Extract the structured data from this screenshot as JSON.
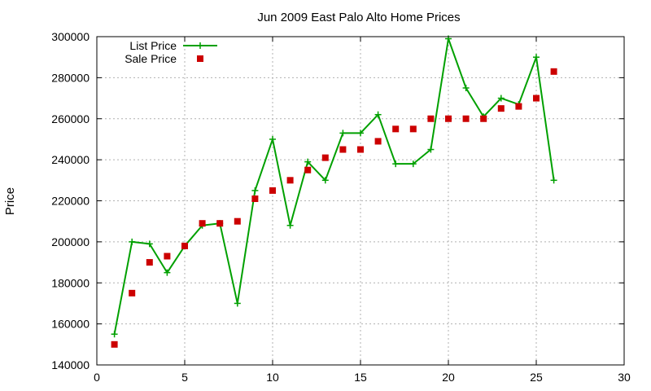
{
  "chart_data": {
    "type": "line",
    "title": "Jun 2009 East Palo Alto Home Prices",
    "xlabel": "",
    "ylabel": "Price",
    "xlim": [
      0,
      30
    ],
    "ylim": [
      140000,
      300000
    ],
    "x_ticks": [
      0,
      5,
      10,
      15,
      20,
      25,
      30
    ],
    "y_ticks": [
      140000,
      160000,
      180000,
      200000,
      220000,
      240000,
      260000,
      280000,
      300000
    ],
    "grid": true,
    "legend_position": "top-left",
    "series": [
      {
        "name": "List Price",
        "style": "line-with-plus-markers",
        "color": "#00a000",
        "x": [
          1,
          2,
          3,
          4,
          5,
          6,
          7,
          8,
          9,
          10,
          11,
          12,
          13,
          14,
          15,
          16,
          17,
          18,
          19,
          20,
          21,
          22,
          23,
          24,
          25,
          26
        ],
        "y": [
          155000,
          200000,
          199000,
          185000,
          198000,
          208000,
          209000,
          170000,
          225000,
          250000,
          208000,
          239000,
          230000,
          253000,
          253000,
          262000,
          238000,
          238000,
          245000,
          299000,
          275000,
          261000,
          270000,
          267000,
          290000,
          230000
        ]
      },
      {
        "name": "Sale Price",
        "style": "square-markers",
        "color": "#cc0000",
        "x": [
          1,
          2,
          3,
          4,
          5,
          6,
          7,
          8,
          9,
          10,
          11,
          12,
          13,
          14,
          15,
          16,
          17,
          18,
          19,
          20,
          21,
          22,
          23,
          24,
          25,
          26
        ],
        "y": [
          150000,
          175000,
          190000,
          193000,
          198000,
          209000,
          209000,
          210000,
          221000,
          225000,
          230000,
          235000,
          241000,
          245000,
          245000,
          249000,
          255000,
          255000,
          260000,
          260000,
          260000,
          260000,
          265000,
          266000,
          270000,
          283000
        ]
      }
    ]
  }
}
